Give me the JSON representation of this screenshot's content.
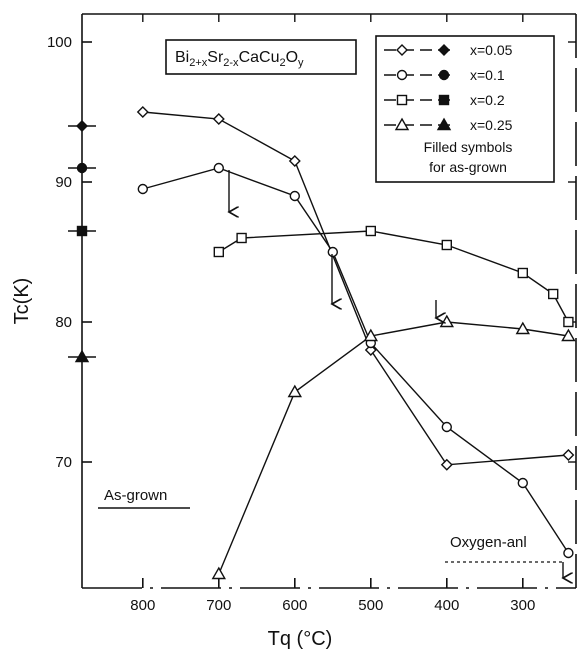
{
  "chart_data": {
    "type": "line",
    "title": "Bi2+xSr2-xCaCu2Oy",
    "title_parts": [
      {
        "text": "Bi",
        "sub": false
      },
      {
        "text": "2+x",
        "sub": true
      },
      {
        "text": "Sr",
        "sub": false
      },
      {
        "text": "2-x",
        "sub": true
      },
      {
        "text": "CaCu",
        "sub": false
      },
      {
        "text": "2",
        "sub": true
      },
      {
        "text": "O",
        "sub": false
      },
      {
        "text": "y",
        "sub": true
      }
    ],
    "xlabel": "Tq (°C)",
    "ylabel": "Tc(K)",
    "xlim": [
      880,
      230
    ],
    "ylim": [
      61,
      102
    ],
    "x_ticks": [
      800,
      700,
      600,
      500,
      400,
      300
    ],
    "x_tick_labels": [
      "800",
      "700",
      "600",
      "500",
      "400",
      "300"
    ],
    "y_ticks": [
      70,
      80,
      90,
      100
    ],
    "y_tick_labels": [
      "70",
      "80",
      "90",
      "100"
    ],
    "legend_position": "top-right",
    "legend_note": [
      "Filled symbols",
      "for as-grown"
    ],
    "series": [
      {
        "name": "x=0.05",
        "marker": "diamond",
        "x": [
          800,
          700,
          600,
          500,
          400,
          240
        ],
        "y": [
          95.0,
          94.5,
          91.5,
          78.0,
          69.8,
          70.5
        ],
        "as_grown": 94.0
      },
      {
        "name": "x=0.1",
        "marker": "circle",
        "x": [
          800,
          700,
          600,
          550,
          500,
          400,
          300,
          240
        ],
        "y": [
          89.5,
          91.0,
          89.0,
          85.0,
          78.5,
          72.5,
          68.5,
          63.5
        ],
        "as_grown": 91.0
      },
      {
        "name": "x=0.2",
        "marker": "square",
        "x": [
          700,
          670,
          500,
          400,
          300,
          260,
          240
        ],
        "y": [
          85.0,
          86.0,
          86.5,
          85.5,
          83.5,
          82.0,
          80.0
        ],
        "as_grown": 86.5
      },
      {
        "name": "x=0.25",
        "marker": "triangle",
        "x": [
          700,
          600,
          500,
          400,
          300,
          240
        ],
        "y": [
          62.0,
          75.0,
          79.0,
          80.0,
          79.5,
          79.0
        ],
        "as_grown": 77.5
      }
    ],
    "as_grown_x": 880,
    "annotations": [
      "As-grown",
      "Oxygen-anl"
    ]
  }
}
